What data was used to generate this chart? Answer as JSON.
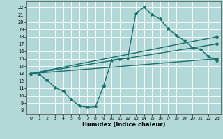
{
  "xlabel": "Humidex (Indice chaleur)",
  "xlim": [
    -0.5,
    23.5
  ],
  "ylim": [
    7.5,
    22.8
  ],
  "xticks": [
    0,
    1,
    2,
    3,
    4,
    5,
    6,
    7,
    8,
    9,
    10,
    11,
    12,
    13,
    14,
    15,
    16,
    17,
    18,
    19,
    20,
    21,
    22,
    23
  ],
  "yticks": [
    8,
    9,
    10,
    11,
    12,
    13,
    14,
    15,
    16,
    17,
    18,
    19,
    20,
    21,
    22
  ],
  "bg_color": "#b2d8d8",
  "grid_color": "#ffffff",
  "line_color": "#1a7070",
  "line_width": 1.0,
  "marker": "*",
  "marker_size": 3,
  "curve1_x": [
    0,
    1,
    2,
    3,
    4,
    5,
    6,
    7,
    8,
    9,
    10,
    11,
    12,
    13,
    14,
    15,
    16,
    17,
    18,
    19,
    20,
    21,
    22,
    23
  ],
  "curve1_y": [
    13.0,
    12.9,
    12.1,
    11.1,
    10.6,
    9.5,
    8.6,
    8.4,
    8.5,
    11.3,
    14.8,
    15.0,
    15.1,
    21.2,
    22.0,
    21.0,
    20.4,
    19.1,
    18.2,
    17.5,
    16.5,
    16.3,
    15.3,
    14.8
  ],
  "line2_x": [
    0,
    23
  ],
  "line2_y": [
    13.0,
    18.0
  ],
  "line3_x": [
    0,
    23
  ],
  "line3_y": [
    13.0,
    17.0
  ],
  "line4_x": [
    0,
    23
  ],
  "line4_y": [
    13.0,
    15.0
  ]
}
